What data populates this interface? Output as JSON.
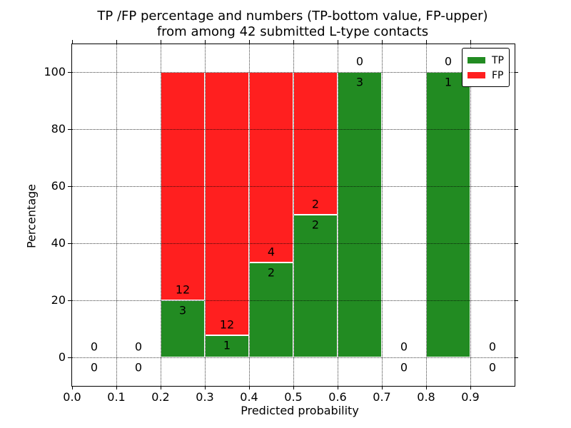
{
  "chart_data": {
    "type": "bar",
    "stacked": true,
    "normalized": "percentage",
    "title_line1": "TP /FP percentage and numbers (TP-bottom value, FP-upper)",
    "title_line2": "from among 42 submitted L-type contacts",
    "xlabel": "Predicted probability",
    "ylabel": "Percentage",
    "xlim": [
      0.0,
      1.0
    ],
    "ylim": [
      -10,
      110
    ],
    "grid": "dotted, drawn above bars",
    "legend_position": "upper right",
    "x_tick_labels": [
      "0.0",
      "0.1",
      "0.2",
      "0.3",
      "0.4",
      "0.5",
      "0.6",
      "0.7",
      "0.8",
      "0.9"
    ],
    "y_tick_labels": [
      "0",
      "20",
      "40",
      "60",
      "80",
      "100"
    ],
    "bin_edges": [
      0.0,
      0.1,
      0.2,
      0.3,
      0.4,
      0.5,
      0.6,
      0.7,
      0.8,
      0.9,
      1.0
    ],
    "series": [
      {
        "name": "TP",
        "color": "#228b22",
        "counts": [
          0,
          0,
          3,
          1,
          2,
          2,
          3,
          0,
          1,
          0
        ]
      },
      {
        "name": "FP",
        "color": "#ff1f1f",
        "counts": [
          0,
          0,
          12,
          12,
          4,
          2,
          0,
          0,
          0,
          0
        ]
      }
    ],
    "tp_percent_shown": [
      null,
      null,
      20.0,
      7.7,
      33.3,
      50.0,
      100.0,
      null,
      100.0,
      null
    ],
    "total_contacts": "42",
    "legend": {
      "entries": [
        {
          "label": "TP",
          "color": "#228b22"
        },
        {
          "label": "FP",
          "color": "#ff1f1f"
        }
      ]
    }
  }
}
